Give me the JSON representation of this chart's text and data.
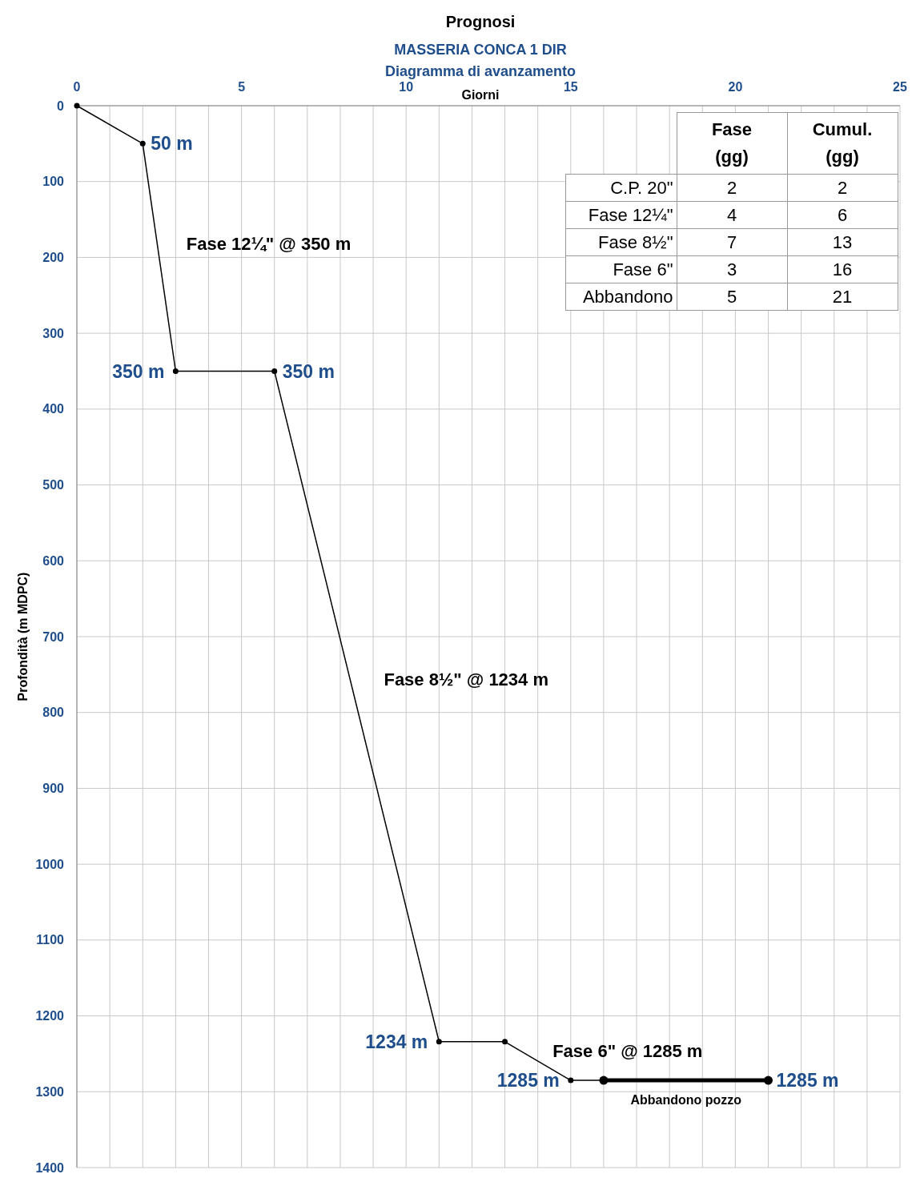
{
  "chart_data": {
    "type": "line",
    "title": "Prognosi",
    "subtitle": "MASSERIA CONCA 1 DIR\nDiagramma di avanzamento",
    "xlabel": "Giorni",
    "ylabel": "Profondità (m MDPC)",
    "series": [
      {
        "color": "#000000",
        "x": [
          0,
          2,
          3,
          6,
          11,
          13,
          15,
          16
        ],
        "values": [
          0,
          50,
          350,
          350,
          1234,
          1234,
          1285,
          1285
        ]
      },
      {
        "name": "Abbandono pozzo",
        "color": "#000000",
        "x": [
          16,
          21
        ],
        "values": [
          1285,
          1285
        ]
      }
    ],
    "xlim": [
      0,
      25
    ],
    "xticks": [
      0,
      {
        "value": 1,
        "label": null
      },
      {
        "value": 2,
        "label": null
      },
      {
        "value": 3,
        "label": null
      },
      {
        "value": 4,
        "label": null
      },
      5,
      {
        "value": 6,
        "label": null
      },
      {
        "value": 7,
        "label": null
      },
      {
        "value": 8,
        "label": null
      },
      {
        "value": 9,
        "label": null
      },
      10,
      {
        "value": 11,
        "label": null
      },
      {
        "value": 12,
        "label": null
      },
      {
        "value": 13,
        "label": null
      },
      {
        "value": 14,
        "label": null
      },
      15,
      {
        "value": 16,
        "label": null
      },
      {
        "value": 17,
        "label": null
      },
      {
        "value": 18,
        "label": null
      },
      {
        "value": 19,
        "label": null
      },
      20,
      {
        "value": 21,
        "label": null
      },
      {
        "value": 22,
        "label": null
      },
      {
        "value": 23,
        "label": null
      },
      {
        "value": 24,
        "label": null
      },
      25
    ],
    "ylim": [
      1400,
      0
    ],
    "yticks": [
      0,
      100,
      200,
      300,
      400,
      500,
      600,
      700,
      800,
      900,
      1000,
      1100,
      1200,
      1300,
      1400
    ],
    "grid": true,
    "marker": "circle",
    "line_style": "solid",
    "annotations": [
      {
        "text": "50 m",
        "x": 2,
        "y": 50
      },
      {
        "text": "350 m",
        "x": 3,
        "y": 350
      },
      {
        "text": "350 m",
        "x": 6,
        "y": 350
      },
      {
        "text": "1234 m",
        "x": 11,
        "y": 1234
      },
      {
        "text": "1285 m",
        "x": 15,
        "y": 1285
      },
      {
        "text": "1285 m",
        "x": 21,
        "y": 1285
      },
      "Fase 12¼\" @ 350 m",
      "Fase 8½\" @ 1234 m",
      "Fase 6\" @ 1285 m",
      "Fase\n(gg)",
      "Cumul.\n(gg)",
      "C.P. 20\"",
      "2",
      "2",
      "Fase 12¼\"",
      "4",
      "6",
      "Fase 8½\"",
      "7",
      "13",
      "Fase 6\"",
      "3",
      "16",
      "Abbandono",
      "5",
      "21"
    ]
  }
}
